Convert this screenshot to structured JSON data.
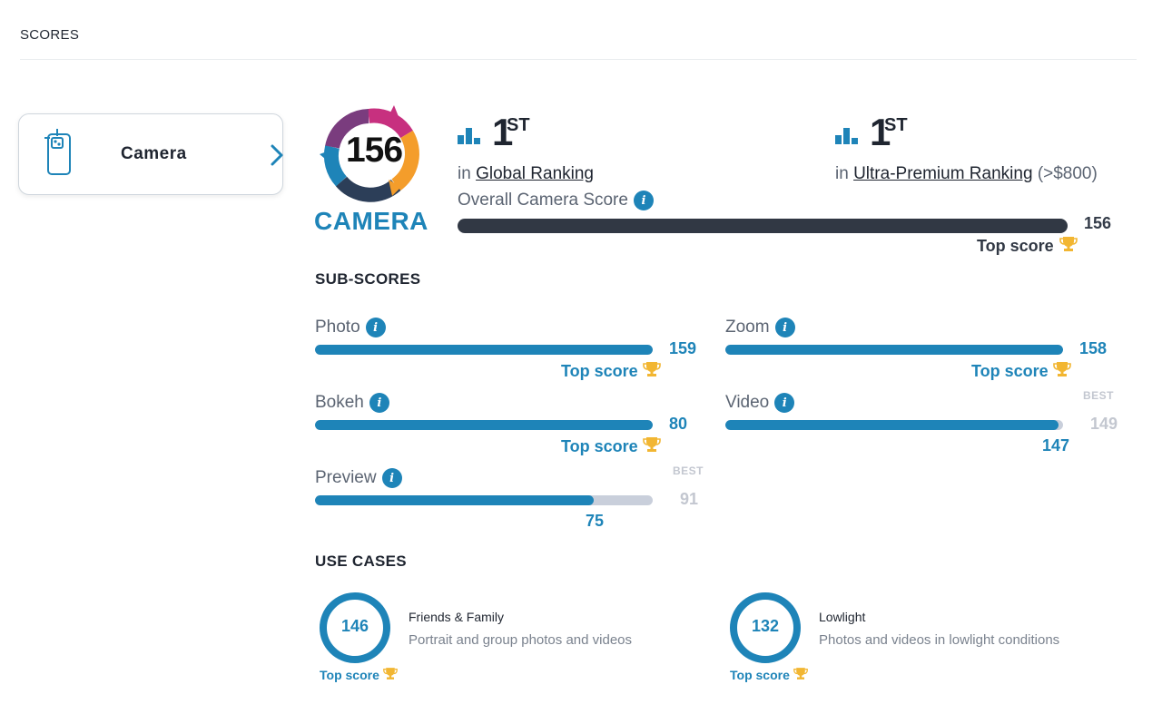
{
  "section": {
    "title": "SCORES"
  },
  "nav": {
    "label": "Camera"
  },
  "logo": {
    "score": "156",
    "word": "CAMERA"
  },
  "global_rank": {
    "rank": "1",
    "suffix": "ST",
    "prefix": "in",
    "link": "Global Ranking",
    "extra": ""
  },
  "segment_rank": {
    "rank": "1",
    "suffix": "ST",
    "prefix": "in",
    "link": "Ultra-Premium Ranking",
    "extra": "(>$800)"
  },
  "overall": {
    "label": "Overall Camera Score",
    "value": "156",
    "fraction": 1.0,
    "top_label": "Top score"
  },
  "subscores": {
    "title": "SUB-SCORES",
    "items": [
      {
        "label": "Photo",
        "value": "159",
        "fraction": 1.0,
        "top_label": "Top score"
      },
      {
        "label": "Zoom",
        "value": "158",
        "fraction": 1.0,
        "top_label": "Top score"
      },
      {
        "label": "Bokeh",
        "value": "80",
        "fraction": 1.0,
        "top_label": "Top score"
      },
      {
        "label": "Video",
        "value": "147",
        "best_label": "BEST",
        "best_value": "149",
        "fraction": 0.987
      },
      {
        "label": "Preview",
        "value": "75",
        "best_label": "BEST",
        "best_value": "91",
        "fraction": 0.824
      }
    ]
  },
  "use_cases": {
    "title": "USE CASES",
    "items": [
      {
        "value": "146",
        "name": "Friends & Family",
        "desc": "Portrait and group photos and videos",
        "top_label": "Top score"
      },
      {
        "value": "132",
        "name": "Lowlight",
        "desc": "Photos and videos in lowlight conditions",
        "top_label": "Top score"
      }
    ]
  },
  "colors": {
    "accent": "#1e84b8",
    "dark_bar": "#313844",
    "track": "#c9cfdb",
    "trophy": "#f2b632"
  }
}
